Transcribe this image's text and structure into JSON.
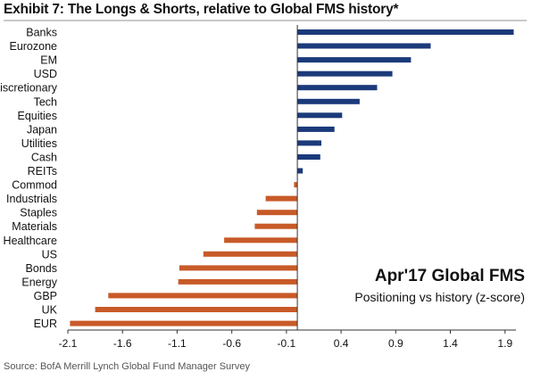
{
  "header": {
    "title": "Exhibit 7: The Longs & Shorts, relative to Global FMS history*"
  },
  "footer": {
    "source": "Source: BofA Merrill Lynch Global Fund Manager Survey"
  },
  "colors": {
    "long": "#1b3a7a",
    "short": "#c85a28",
    "axis": "#333333"
  },
  "chart_data": {
    "type": "bar",
    "orientation": "horizontal",
    "title": "",
    "xlabel": "",
    "ylabel": "",
    "categories": [
      "Banks",
      "Eurozone",
      "EM",
      "USD",
      "Discretionary",
      "Tech",
      "Equities",
      "Japan",
      "Utilities",
      "Cash",
      "REITs",
      "Commod",
      "Industrials",
      "Staples",
      "Materials",
      "Healthcare",
      "US",
      "Bonds",
      "Energy",
      "GBP",
      "UK",
      "EUR"
    ],
    "values": [
      1.98,
      1.22,
      1.04,
      0.87,
      0.73,
      0.57,
      0.41,
      0.34,
      0.22,
      0.21,
      0.05,
      -0.03,
      -0.29,
      -0.37,
      -0.39,
      -0.67,
      -0.86,
      -1.08,
      -1.09,
      -1.73,
      -1.85,
      -2.08
    ],
    "xlim": [
      -2.1,
      2.0
    ],
    "xticks": [
      "-2.1",
      "-1.6",
      "-1.1",
      "-0.6",
      "-0.1",
      "0.4",
      "0.9",
      "1.4",
      "1.9"
    ],
    "xtick_values": [
      -2.1,
      -1.6,
      -1.1,
      -0.6,
      -0.1,
      0.4,
      0.9,
      1.4,
      1.9
    ],
    "grid": false,
    "annotation": {
      "title": "Apr'17 Global FMS",
      "subtitle": "Positioning vs history (z-score)"
    }
  }
}
